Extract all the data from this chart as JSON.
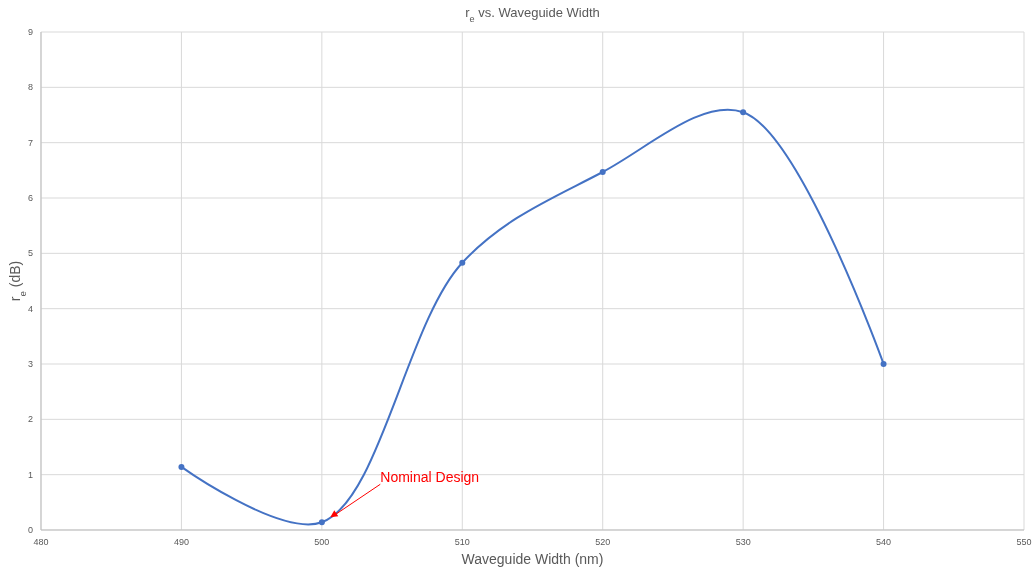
{
  "chart_data": {
    "type": "line",
    "title": "r$_{e}$ vs. Waveguide Width",
    "xlabel": "Waveguide Width (nm)",
    "ylabel": "r$_{e}$ (dB)",
    "x": [
      490,
      500,
      510,
      520,
      530,
      540
    ],
    "series": [
      {
        "color": "#4472c4",
        "values": [
          1.14,
          0.14,
          4.83,
          6.47,
          7.55,
          3.0
        ]
      }
    ],
    "xlim": [
      480,
      550
    ],
    "xticks": [
      480,
      490,
      500,
      510,
      520,
      530,
      540,
      550
    ],
    "ylim": [
      0,
      9
    ],
    "yticks": [
      0,
      1,
      2,
      3,
      4,
      5,
      6,
      7,
      8,
      9
    ],
    "grid": true,
    "marker": "circle",
    "line_style": "solid",
    "annotations": [
      {
        "text": "Nominal Design",
        "x": 500.6,
        "y": 0.23
      }
    ]
  }
}
